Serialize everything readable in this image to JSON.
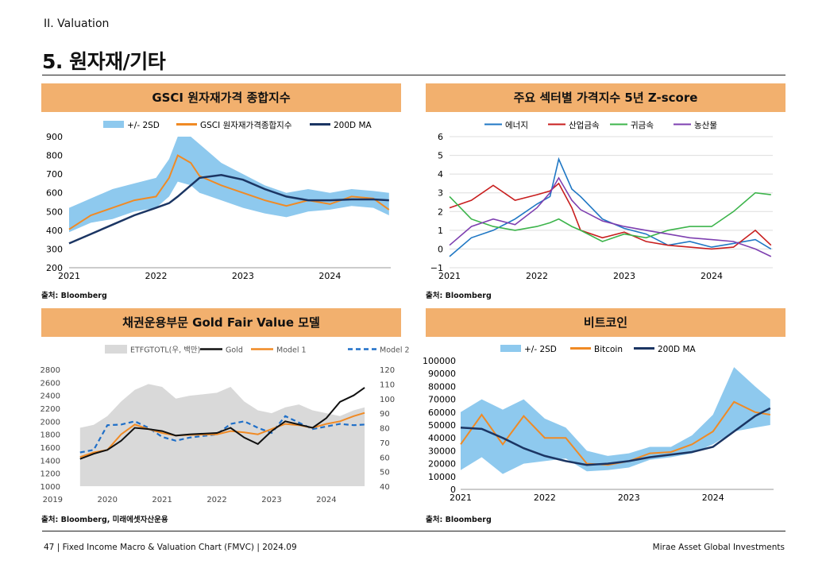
{
  "page": {
    "section": "II. Valuation",
    "title": "5. 원자재/기타",
    "footer_left": "47 | Fixed Income Macro & Valuation Chart (FMVC) | 2024.09",
    "footer_right": "Mirae Asset Global Investments"
  },
  "panels": [
    {
      "header": "GSCI 원자재가격 종합지수",
      "source": "출처: Bloomberg"
    },
    {
      "header": "주요 섹터별 가격지수 5년 Z-score",
      "source": "출처: Bloomberg"
    },
    {
      "header": "채권운용부문 Gold Fair Value 모델",
      "source": "출처: Bloomberg, 미래에셋자산운용"
    },
    {
      "header": "비트코인",
      "source": "출처: Bloomberg"
    }
  ],
  "colors": {
    "header": "#f2b06e",
    "band": "#8ec9ee",
    "orange": "#f08a24",
    "navy": "#1b3563",
    "blue": "#1f77c4",
    "red": "#c81e1e",
    "green": "#3cb44b",
    "purple": "#7e3fb0",
    "gray_area": "#d9d9d9",
    "black": "#111111",
    "dash_blue": "#1f6fc8"
  },
  "chart_data": [
    {
      "type": "line",
      "legend": [
        "+/- 2SD",
        "GSCI 원자재가격종합지수",
        "200D MA"
      ],
      "x_ticks": [
        "2021",
        "2022",
        "2023",
        "2024"
      ],
      "ylim": [
        200,
        900
      ],
      "y_ticks": [
        "200",
        "300",
        "400",
        "500",
        "600",
        "700",
        "800",
        "900"
      ],
      "x": [
        2021.0,
        2021.25,
        2021.5,
        2021.75,
        2022.0,
        2022.15,
        2022.25,
        2022.4,
        2022.5,
        2022.75,
        2023.0,
        2023.25,
        2023.5,
        2023.75,
        2024.0,
        2024.25,
        2024.5,
        2024.68
      ],
      "series": [
        {
          "name": "GSCI 원자재가격종합지수",
          "values": [
            405,
            480,
            520,
            560,
            580,
            680,
            800,
            760,
            690,
            640,
            600,
            560,
            530,
            560,
            540,
            580,
            570,
            510
          ]
        },
        {
          "name": "200D MA",
          "values": [
            330,
            380,
            430,
            480,
            520,
            545,
            580,
            640,
            680,
            695,
            670,
            620,
            580,
            560,
            560,
            565,
            565,
            560
          ]
        },
        {
          "name": "+/- 2SD upper",
          "values": [
            520,
            570,
            620,
            650,
            680,
            780,
            900,
            900,
            860,
            760,
            700,
            640,
            600,
            620,
            600,
            620,
            610,
            600
          ]
        },
        {
          "name": "+/- 2SD lower",
          "values": [
            390,
            440,
            460,
            500,
            520,
            580,
            660,
            640,
            600,
            560,
            520,
            490,
            470,
            500,
            510,
            530,
            520,
            480
          ]
        }
      ]
    },
    {
      "type": "line",
      "legend": [
        "에너지",
        "산업금속",
        "귀금속",
        "농산물"
      ],
      "x_ticks": [
        "2021",
        "2022",
        "2023",
        "2024"
      ],
      "ylim": [
        -1,
        6
      ],
      "y_ticks": [
        "−1",
        "0",
        "1",
        "2",
        "3",
        "4",
        "5",
        "6"
      ],
      "x": [
        2021.0,
        2021.25,
        2021.5,
        2021.75,
        2022.0,
        2022.15,
        2022.25,
        2022.4,
        2022.5,
        2022.75,
        2023.0,
        2023.25,
        2023.5,
        2023.75,
        2024.0,
        2024.25,
        2024.5,
        2024.68
      ],
      "series": [
        {
          "name": "에너지",
          "values": [
            -0.4,
            0.6,
            1.0,
            1.6,
            2.4,
            2.8,
            4.8,
            3.2,
            2.8,
            1.6,
            1.1,
            0.8,
            0.2,
            0.4,
            0.1,
            0.3,
            0.5,
            0.0
          ]
        },
        {
          "name": "산업금속",
          "values": [
            2.2,
            2.6,
            3.4,
            2.6,
            2.9,
            3.1,
            3.5,
            2.2,
            1.0,
            0.6,
            0.9,
            0.4,
            0.2,
            0.1,
            0.0,
            0.1,
            1.0,
            0.2
          ]
        },
        {
          "name": "귀금속",
          "values": [
            2.8,
            1.6,
            1.2,
            1.0,
            1.2,
            1.4,
            1.6,
            1.2,
            1.0,
            0.4,
            0.8,
            0.6,
            1.0,
            1.2,
            1.2,
            2.0,
            3.0,
            2.9
          ]
        },
        {
          "name": "농산물",
          "values": [
            0.2,
            1.2,
            1.6,
            1.3,
            2.2,
            3.0,
            3.8,
            2.6,
            2.1,
            1.5,
            1.2,
            1.0,
            0.8,
            0.6,
            0.5,
            0.4,
            0.0,
            -0.4
          ]
        }
      ]
    },
    {
      "type": "line",
      "legend": [
        "ETFGTOTL(우, 백만)",
        "Gold",
        "Model 1",
        "Model 2"
      ],
      "x_ticks": [
        "2019",
        "2020",
        "2021",
        "2022",
        "2023",
        "2024"
      ],
      "ylim_left": [
        1000,
        2800
      ],
      "y_ticks_left": [
        "1000",
        "1200",
        "1400",
        "1600",
        "1800",
        "2000",
        "2200",
        "2400",
        "2600",
        "2800"
      ],
      "ylim_right": [
        40,
        120
      ],
      "y_ticks_right": [
        "40",
        "50",
        "60",
        "70",
        "80",
        "90",
        "100",
        "110",
        "120"
      ],
      "x": [
        2019.5,
        2019.75,
        2020.0,
        2020.25,
        2020.5,
        2020.75,
        2021.0,
        2021.25,
        2021.5,
        2022.0,
        2022.25,
        2022.5,
        2022.75,
        2023.0,
        2023.25,
        2023.5,
        2023.75,
        2024.0,
        2024.25,
        2024.5,
        2024.7
      ],
      "series": [
        {
          "name": "ETFGTOTL(우, 백만)",
          "axis": "right",
          "values": [
            80,
            82,
            88,
            98,
            106,
            110,
            108,
            100,
            102,
            104,
            108,
            98,
            92,
            90,
            94,
            96,
            92,
            90,
            88,
            92,
            94
          ]
        },
        {
          "name": "Gold",
          "values": [
            1420,
            1500,
            1560,
            1700,
            1900,
            1880,
            1850,
            1780,
            1800,
            1820,
            1900,
            1750,
            1650,
            1850,
            2000,
            1950,
            1900,
            2050,
            2300,
            2400,
            2520
          ]
        },
        {
          "name": "Model 1",
          "values": [
            1450,
            1520,
            1560,
            1800,
            1950,
            1880,
            1820,
            1780,
            1790,
            1800,
            1850,
            1830,
            1800,
            1880,
            1960,
            1940,
            1900,
            1960,
            2000,
            2080,
            2130
          ]
        },
        {
          "name": "Model 2",
          "values": [
            1520,
            1560,
            1940,
            1950,
            2000,
            1900,
            1760,
            1700,
            1750,
            1800,
            1960,
            2000,
            1900,
            1820,
            2080,
            1980,
            1880,
            1920,
            1960,
            1940,
            1950
          ]
        }
      ]
    },
    {
      "type": "line",
      "legend": [
        "+/- 2SD",
        "Bitcoin",
        "200D MA"
      ],
      "x_ticks": [
        "2021",
        "2022",
        "2023",
        "2024"
      ],
      "ylim": [
        0,
        100000
      ],
      "y_ticks": [
        "0",
        "10000",
        "20000",
        "30000",
        "40000",
        "50000",
        "60000",
        "70000",
        "80000",
        "90000",
        "100000"
      ],
      "x": [
        2021.0,
        2021.25,
        2021.5,
        2021.75,
        2022.0,
        2022.25,
        2022.5,
        2022.75,
        2023.0,
        2023.25,
        2023.5,
        2023.75,
        2024.0,
        2024.25,
        2024.5,
        2024.68
      ],
      "series": [
        {
          "name": "Bitcoin",
          "values": [
            35000,
            58000,
            35000,
            57000,
            40000,
            40000,
            20000,
            19000,
            22000,
            28000,
            29000,
            35000,
            45000,
            68000,
            60000,
            58000
          ]
        },
        {
          "name": "200D MA",
          "values": [
            48000,
            47000,
            40000,
            32000,
            26000,
            22000,
            19000,
            20000,
            22000,
            25000,
            27000,
            29000,
            33000,
            45000,
            57000,
            63000
          ]
        },
        {
          "name": "+/- 2SD upper",
          "values": [
            60000,
            70000,
            62000,
            70000,
            55000,
            48000,
            30000,
            26000,
            28000,
            33000,
            33000,
            42000,
            58000,
            95000,
            80000,
            70000
          ]
        },
        {
          "name": "+/- 2SD lower",
          "values": [
            15000,
            25000,
            12000,
            20000,
            22000,
            24000,
            14000,
            15000,
            17000,
            23000,
            25000,
            28000,
            35000,
            45000,
            48000,
            50000
          ]
        }
      ]
    }
  ]
}
